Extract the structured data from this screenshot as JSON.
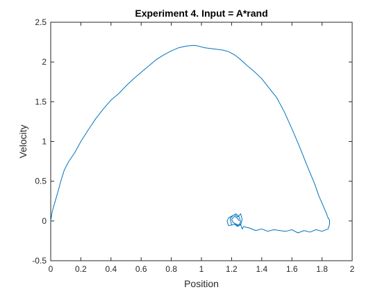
{
  "chart_data": {
    "type": "line",
    "title": "Experiment 4. Input = A*rand",
    "xlabel": "Position",
    "ylabel": "Velocity",
    "xlim": [
      0,
      2
    ],
    "ylim": [
      -0.5,
      2.5
    ],
    "xticks": [
      "0",
      "0.2",
      "0.4",
      "0.6",
      "0.8",
      "1",
      "1.2",
      "1.4",
      "1.6",
      "1.8",
      "2"
    ],
    "yticks": [
      "-0.5",
      "0",
      "0.5",
      "1",
      "1.5",
      "2",
      "2.5"
    ],
    "grid": false,
    "legend": "none",
    "series": [
      {
        "color": "#0072BD",
        "x": [
          0.0,
          0.01,
          0.03,
          0.05,
          0.07,
          0.09,
          0.12,
          0.16,
          0.2,
          0.25,
          0.3,
          0.35,
          0.4,
          0.45,
          0.5,
          0.55,
          0.6,
          0.65,
          0.7,
          0.75,
          0.8,
          0.85,
          0.9,
          0.95,
          0.98,
          1.02,
          1.06,
          1.1,
          1.14,
          1.18,
          1.22,
          1.26,
          1.3,
          1.35,
          1.4,
          1.45,
          1.5,
          1.55,
          1.6,
          1.65,
          1.7,
          1.75,
          1.78,
          1.81,
          1.83,
          1.84,
          1.85,
          1.85,
          1.84,
          1.8,
          1.76,
          1.72,
          1.68,
          1.64,
          1.6,
          1.56,
          1.52,
          1.48,
          1.44,
          1.4,
          1.36,
          1.32,
          1.3,
          1.28,
          1.27,
          1.26,
          1.24,
          1.22,
          1.2,
          1.18,
          1.17,
          1.18,
          1.2,
          1.22,
          1.24,
          1.26,
          1.27,
          1.26,
          1.24,
          1.22,
          1.2,
          1.19,
          1.21,
          1.23,
          1.25,
          1.26,
          1.25,
          1.23,
          1.21,
          1.2,
          1.22,
          1.24,
          1.25
        ],
        "y": [
          0.0,
          0.12,
          0.25,
          0.38,
          0.52,
          0.64,
          0.75,
          0.86,
          1.0,
          1.15,
          1.29,
          1.41,
          1.52,
          1.6,
          1.7,
          1.79,
          1.87,
          1.95,
          2.03,
          2.09,
          2.14,
          2.18,
          2.2,
          2.21,
          2.2,
          2.18,
          2.17,
          2.16,
          2.15,
          2.13,
          2.09,
          2.03,
          1.96,
          1.88,
          1.79,
          1.67,
          1.55,
          1.37,
          1.16,
          0.94,
          0.7,
          0.47,
          0.31,
          0.18,
          0.09,
          0.04,
          0.01,
          -0.04,
          -0.1,
          -0.13,
          -0.11,
          -0.14,
          -0.12,
          -0.15,
          -0.11,
          -0.13,
          -0.12,
          -0.11,
          -0.13,
          -0.1,
          -0.12,
          -0.09,
          -0.08,
          -0.07,
          -0.1,
          -0.04,
          -0.07,
          -0.04,
          -0.05,
          -0.06,
          0.0,
          0.04,
          0.06,
          0.08,
          0.05,
          0.09,
          0.02,
          -0.05,
          -0.06,
          -0.04,
          -0.05,
          0.03,
          0.07,
          0.09,
          0.05,
          -0.01,
          -0.05,
          -0.04,
          -0.02,
          0.02,
          0.06,
          0.03,
          0.0
        ]
      }
    ]
  }
}
